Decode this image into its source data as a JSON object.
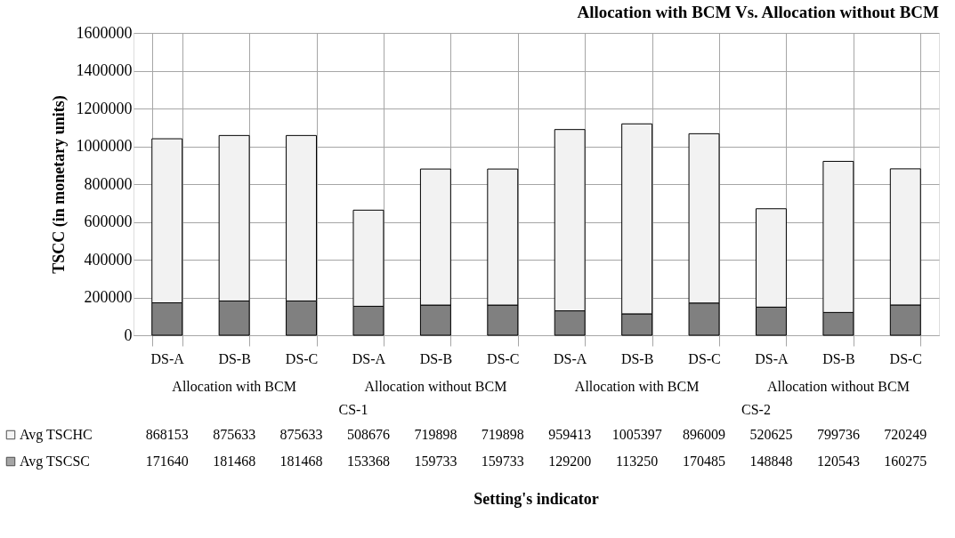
{
  "chart_data": {
    "type": "bar",
    "title": "Allocation with BCM Vs. Allocation without BCM",
    "ylabel": "TSCC (in monetary units)",
    "categories": [
      "DS-A",
      "DS-B",
      "DS-C",
      "DS-A",
      "DS-B",
      "DS-C",
      "DS-A",
      "DS-B",
      "DS-C",
      "DS-A",
      "DS-B",
      "DS-C"
    ],
    "series": [
      {
        "name": "Avg TSCSC",
        "color": "#808080",
        "values": [
          171640,
          181468,
          181468,
          153368,
          159733,
          159733,
          129200,
          113250,
          170485,
          148848,
          120543,
          160275
        ]
      },
      {
        "name": "Avg TSCHC",
        "color": "#f2f2f2",
        "values": [
          868153,
          875633,
          875633,
          508676,
          719898,
          719898,
          959413,
          1005397,
          896009,
          520625,
          799736,
          720249
        ]
      }
    ],
    "stacked": true,
    "ylim": [
      0,
      1600000
    ],
    "yticks": [
      0,
      200000,
      400000,
      600000,
      800000,
      1000000,
      1200000,
      1400000,
      1600000
    ],
    "grid": true,
    "legend": "bottom",
    "data_labels": true,
    "annotations": [
      "Allocation with BCM",
      "Allocation without BCM",
      "Allocation with BCM",
      "Allocation without BCM",
      "CS-1",
      "CS-2",
      "Setting's indicator"
    ]
  }
}
